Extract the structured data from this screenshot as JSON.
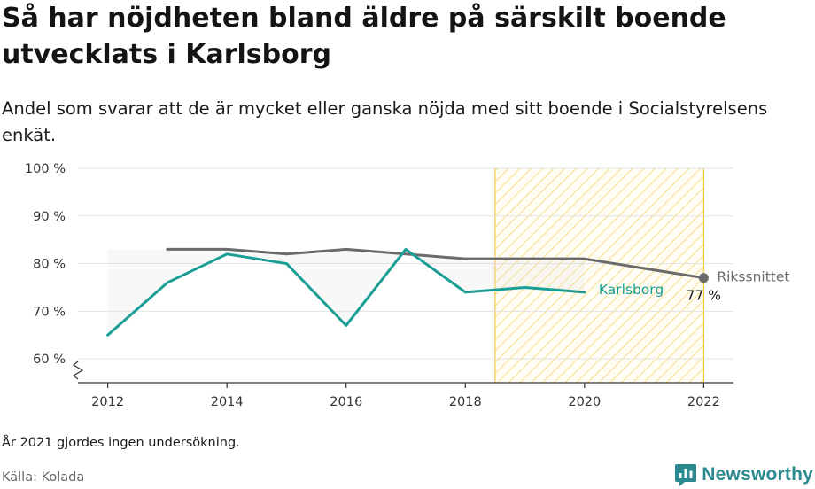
{
  "title": "Så har nöjdheten bland äldre på särskilt boende utvecklats i Karlsborg",
  "subtitle": "Andel som svarar att de är mycket eller ganska nöjda med sitt boende i Socialstyrelsens enkät.",
  "note": "År 2021 gjordes ingen undersökning.",
  "source": "Källa: Kolada",
  "brand": {
    "name": "Newsworthy",
    "color": "#2a8a8f",
    "icon": "newsworthy-logo-icon"
  },
  "chart_data": {
    "type": "line",
    "x_ticks": [
      2012,
      2014,
      2016,
      2018,
      2020,
      2022
    ],
    "y_ticks": [
      60,
      70,
      80,
      90,
      100
    ],
    "y_tick_labels": [
      "60 %",
      "70 %",
      "80 %",
      "90 %",
      "100 %"
    ],
    "xlim": [
      2011.5,
      2022.5
    ],
    "ylim": [
      55,
      100
    ],
    "y_axis_break": true,
    "grid": "horizontal",
    "highlight_region": {
      "from": 2018.5,
      "to": 2022,
      "pattern": "diagonal-hatch",
      "color": "#f5c842"
    },
    "series": [
      {
        "name": "Rikssnittet",
        "color": "#6b6b6b",
        "points": [
          {
            "x": 2013,
            "y": 83
          },
          {
            "x": 2014,
            "y": 83
          },
          {
            "x": 2015,
            "y": 82
          },
          {
            "x": 2016,
            "y": 83
          },
          {
            "x": 2017,
            "y": 82
          },
          {
            "x": 2018,
            "y": 81
          },
          {
            "x": 2019,
            "y": 81
          },
          {
            "x": 2020,
            "y": 81
          },
          {
            "x": 2022,
            "y": 77
          }
        ],
        "end_value_label": "77 %"
      },
      {
        "name": "Karlsborg",
        "color": "#1a9e96",
        "points": [
          {
            "x": 2012,
            "y": 65
          },
          {
            "x": 2013,
            "y": 76
          },
          {
            "x": 2014,
            "y": 82
          },
          {
            "x": 2015,
            "y": 80
          },
          {
            "x": 2016,
            "y": 67
          },
          {
            "x": 2017,
            "y": 83
          },
          {
            "x": 2018,
            "y": 74
          },
          {
            "x": 2019,
            "y": 75
          },
          {
            "x": 2020,
            "y": 74
          }
        ]
      }
    ]
  }
}
